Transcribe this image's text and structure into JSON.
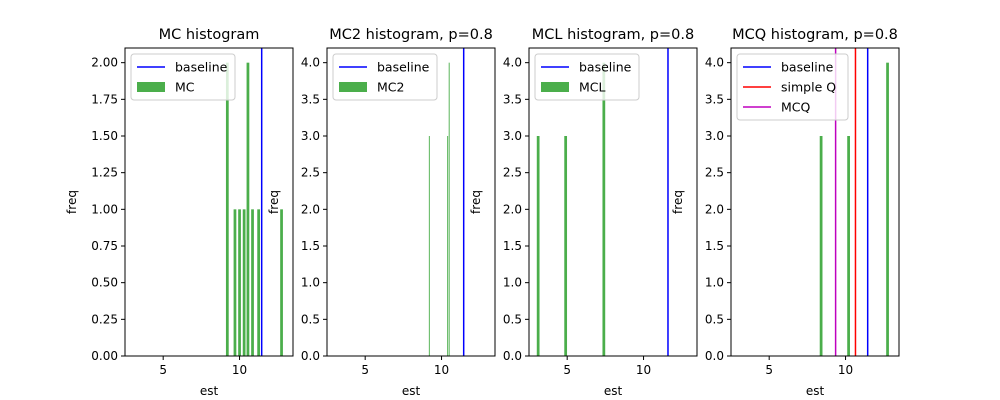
{
  "chart_data": [
    {
      "type": "bar",
      "title": "MC histogram",
      "xlabel": "est",
      "ylabel": "freq",
      "xlim": [
        2.5,
        13.5
      ],
      "ylim": [
        0,
        2.1
      ],
      "xticks": [
        5,
        10
      ],
      "yticks": [
        0.0,
        0.25,
        0.5,
        0.75,
        1.0,
        1.25,
        1.5,
        1.75,
        2.0
      ],
      "ytick_labels": [
        "0.00",
        "0.25",
        "0.50",
        "0.75",
        "1.00",
        "1.25",
        "1.50",
        "1.75",
        "2.00"
      ],
      "bars": [
        {
          "x": 9.2,
          "width": 0.18,
          "height": 2
        },
        {
          "x": 9.7,
          "width": 0.18,
          "height": 1
        },
        {
          "x": 10.0,
          "width": 0.18,
          "height": 1
        },
        {
          "x": 10.3,
          "width": 0.18,
          "height": 1
        },
        {
          "x": 10.55,
          "width": 0.18,
          "height": 2
        },
        {
          "x": 10.85,
          "width": 0.18,
          "height": 1
        },
        {
          "x": 11.25,
          "width": 0.18,
          "height": 1
        },
        {
          "x": 12.75,
          "width": 0.18,
          "height": 1
        }
      ],
      "bar_color": "#2ca02c",
      "bar_label": "MC",
      "vlines": [
        {
          "x": 11.45,
          "color": "#0000ff",
          "label": "baseline"
        }
      ],
      "legend": [
        "baseline",
        "MC"
      ],
      "legend_position": "upper-left"
    },
    {
      "type": "bar",
      "title": "MC2 histogram, p=0.8",
      "xlabel": "est",
      "ylabel": "freq",
      "xlim": [
        2.5,
        13.5
      ],
      "ylim": [
        0,
        4.2
      ],
      "xticks": [
        5,
        10
      ],
      "yticks": [
        0.0,
        0.5,
        1.0,
        1.5,
        2.0,
        2.5,
        3.0,
        3.5,
        4.0
      ],
      "ytick_labels": [
        "0.0",
        "0.5",
        "1.0",
        "1.5",
        "2.0",
        "2.5",
        "3.0",
        "3.5",
        "4.0"
      ],
      "bars": [
        {
          "x": 9.2,
          "width": 0.06,
          "height": 3
        },
        {
          "x": 10.4,
          "width": 0.06,
          "height": 3
        },
        {
          "x": 10.5,
          "width": 0.06,
          "height": 4
        }
      ],
      "bar_color": "#2ca02c",
      "bar_label": "MC2",
      "vlines": [
        {
          "x": 11.45,
          "color": "#0000ff",
          "label": "baseline"
        }
      ],
      "legend": [
        "baseline",
        "MC2"
      ],
      "legend_position": "upper-left"
    },
    {
      "type": "bar",
      "title": "MCL histogram, p=0.8",
      "xlabel": "est",
      "ylabel": "freq",
      "xlim": [
        2.5,
        13.5
      ],
      "ylim": [
        0,
        4.2
      ],
      "xticks": [
        5,
        10
      ],
      "yticks": [
        0.0,
        0.5,
        1.0,
        1.5,
        2.0,
        2.5,
        3.0,
        3.5,
        4.0
      ],
      "ytick_labels": [
        "0.0",
        "0.5",
        "1.0",
        "1.5",
        "2.0",
        "2.5",
        "3.0",
        "3.5",
        "4.0"
      ],
      "bars": [
        {
          "x": 3.1,
          "width": 0.18,
          "height": 3
        },
        {
          "x": 4.9,
          "width": 0.18,
          "height": 3
        },
        {
          "x": 7.4,
          "width": 0.18,
          "height": 4
        }
      ],
      "bar_color": "#2ca02c",
      "bar_label": "MCL",
      "vlines": [
        {
          "x": 11.6,
          "color": "#0000ff",
          "label": "baseline"
        }
      ],
      "legend": [
        "baseline",
        "MCL"
      ],
      "legend_position": "upper-left"
    },
    {
      "type": "bar",
      "title": "MCQ histogram, p=0.8",
      "xlabel": "est",
      "ylabel": "freq",
      "xlim": [
        2.5,
        13.5
      ],
      "ylim": [
        0,
        4.2
      ],
      "xticks": [
        5,
        10
      ],
      "yticks": [
        0.0,
        0.5,
        1.0,
        1.5,
        2.0,
        2.5,
        3.0,
        3.5,
        4.0
      ],
      "ytick_labels": [
        "0.0",
        "0.5",
        "1.0",
        "1.5",
        "2.0",
        "2.5",
        "3.0",
        "3.5",
        "4.0"
      ],
      "bars": [
        {
          "x": 8.4,
          "width": 0.18,
          "height": 3
        },
        {
          "x": 10.2,
          "width": 0.18,
          "height": 3
        },
        {
          "x": 12.75,
          "width": 0.18,
          "height": 4
        }
      ],
      "bar_color": "#2ca02c",
      "bar_label": null,
      "vlines": [
        {
          "x": 11.45,
          "color": "#0000ff",
          "label": "baseline"
        },
        {
          "x": 10.65,
          "color": "#ff0000",
          "label": "simple Q"
        },
        {
          "x": 9.35,
          "color": "#bf00bf",
          "label": "MCQ"
        }
      ],
      "legend": [
        "baseline",
        "simple Q",
        "MCQ"
      ],
      "legend_position": "upper-left"
    }
  ]
}
